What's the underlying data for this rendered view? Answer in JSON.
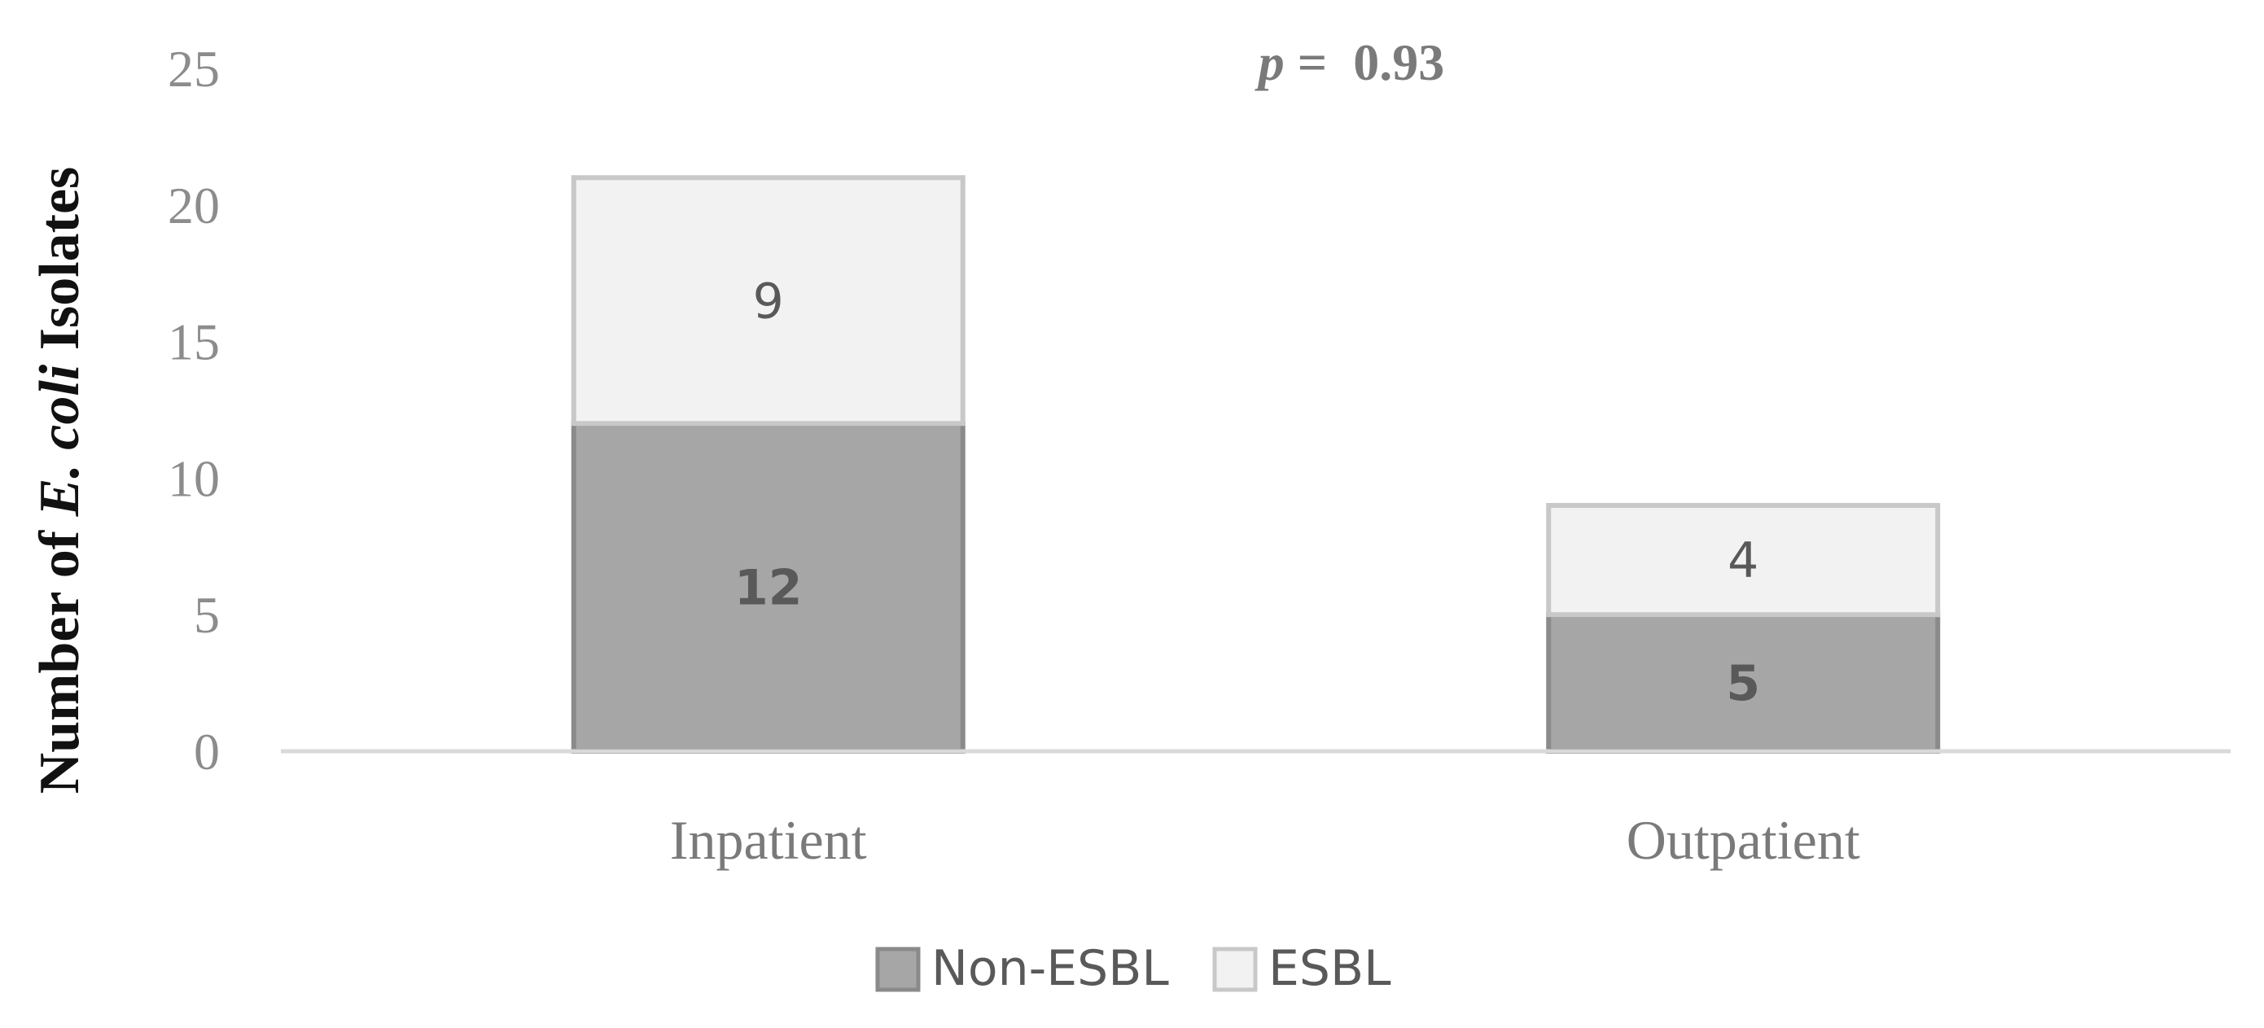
{
  "chart_data": {
    "type": "bar",
    "stacked": true,
    "categories": [
      "Inpatient",
      "Outpatient"
    ],
    "series": [
      {
        "name": "Non-ESBL",
        "values": [
          12,
          5
        ],
        "color": "#a6a6a6",
        "border": "#8a8a8a",
        "label_bold": true
      },
      {
        "name": "ESBL",
        "values": [
          9,
          4
        ],
        "color": "#f2f2f2",
        "border": "#c8c8c8",
        "label_bold": false
      }
    ],
    "ylim": [
      0,
      25
    ],
    "yticks": [
      0,
      5,
      10,
      15,
      20,
      25
    ],
    "ylabel": {
      "prefix": "Number of ",
      "italic": "E. coli",
      "suffix": " Isolates"
    },
    "annotation": {
      "italic": "p",
      "text": " =  0.93"
    },
    "grid": false,
    "legend_position": "bottom",
    "axis_color": "#d9d9d9"
  }
}
